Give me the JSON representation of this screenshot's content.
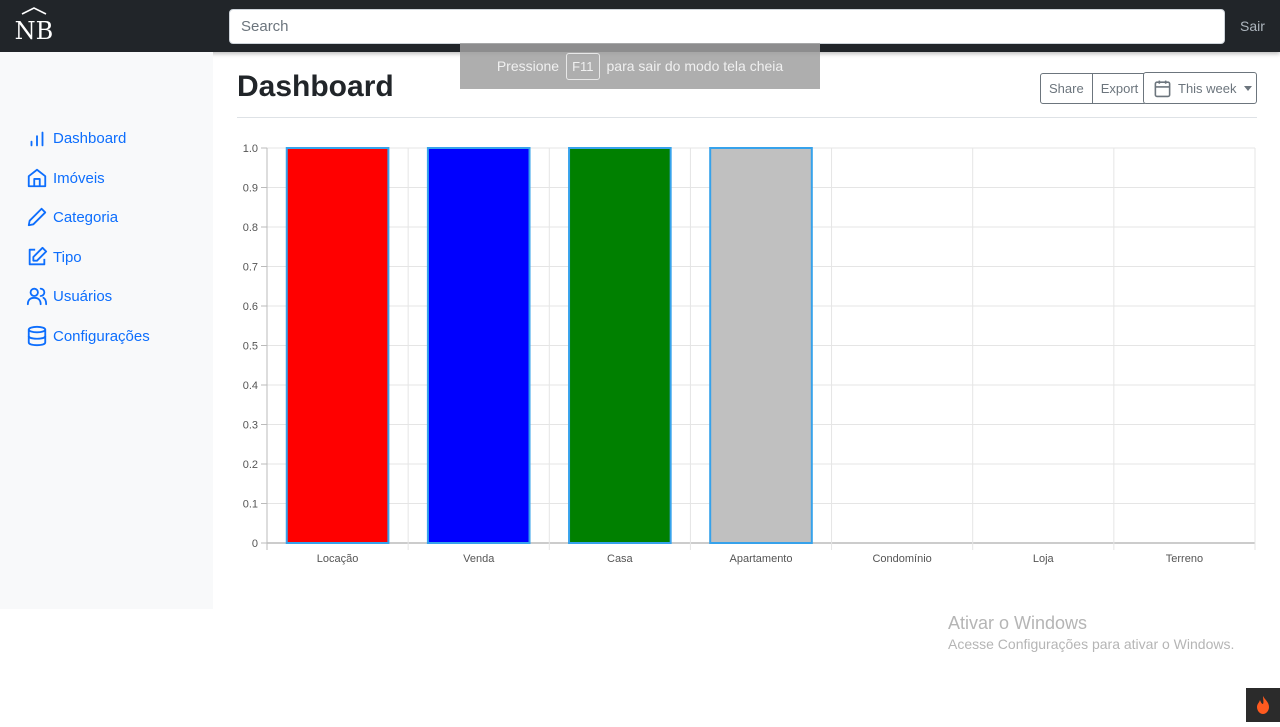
{
  "navbar": {
    "brand": "NB",
    "search_placeholder": "Search",
    "signout_label": "Sair"
  },
  "sidebar": {
    "items": [
      {
        "label": "Dashboard",
        "icon": "bar-chart-icon"
      },
      {
        "label": "Imóveis",
        "icon": "home-icon"
      },
      {
        "label": "Categoria",
        "icon": "pencil-icon"
      },
      {
        "label": "Tipo",
        "icon": "edit-icon"
      },
      {
        "label": "Usuários",
        "icon": "users-icon"
      },
      {
        "label": "Configurações",
        "icon": "database-icon"
      }
    ]
  },
  "main": {
    "title": "Dashboard",
    "share_label": "Share",
    "export_label": "Export",
    "range_label": "This week"
  },
  "toast": {
    "before": "Pressione",
    "key": "F11",
    "after": "para sair do modo tela cheia"
  },
  "watermark": {
    "title": "Ativar o Windows",
    "subtitle": "Acesse Configurações para ativar o Windows."
  },
  "colors": {
    "accent": "#0d6efd",
    "navbar": "#212529",
    "sidebar": "#f8f9fa"
  },
  "chart_data": {
    "type": "bar",
    "categories": [
      "Locação",
      "Venda",
      "Casa",
      "Apartamento",
      "Condomínio",
      "Loja",
      "Terreno"
    ],
    "values": [
      1,
      1,
      1,
      1,
      0,
      0,
      0
    ],
    "colors": [
      "#ff0000",
      "#0000ff",
      "#008000",
      "#c0c0c0",
      "#ff0000",
      "#0000ff",
      "#008000"
    ],
    "border_color": "#36a2eb",
    "ylim": [
      0,
      1
    ],
    "yticks": [
      "0",
      "0.1",
      "0.2",
      "0.3",
      "0.4",
      "0.5",
      "0.6",
      "0.7",
      "0.8",
      "0.9",
      "1.0"
    ],
    "grid": true,
    "legend": "none"
  }
}
